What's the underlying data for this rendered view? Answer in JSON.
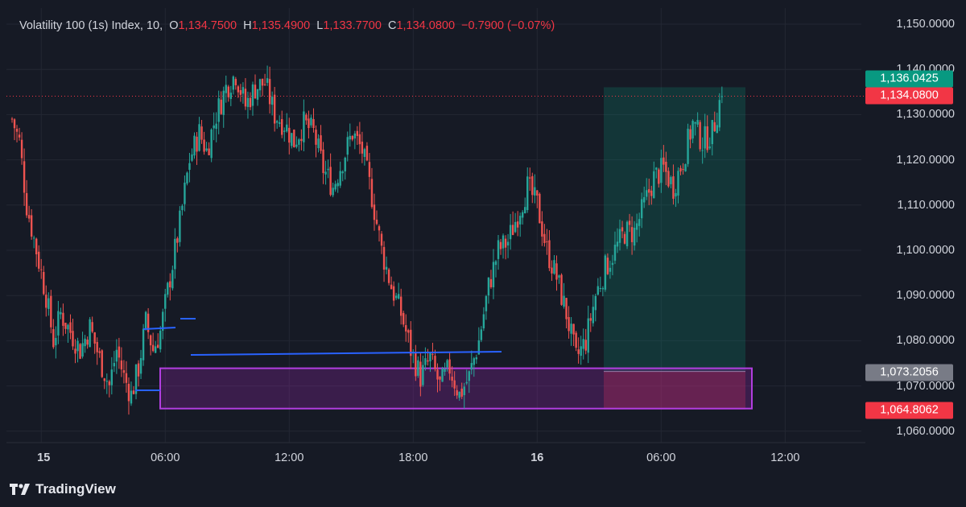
{
  "legend": {
    "symbol": "Volatility 100 (1s) Index, 10,",
    "o_key": "O",
    "o_val": "1,134.7500",
    "h_key": "H",
    "h_val": "1,135.4900",
    "l_key": "L",
    "l_val": "1,133.7700",
    "c_key": "C",
    "c_val": "1,134.0800",
    "change": "−0.7900 (−0.07%)"
  },
  "price_axis": [
    "1,150.0000",
    "1,140.0000",
    "1,130.0000",
    "1,120.0000",
    "1,110.0000",
    "1,100.0000",
    "1,090.0000",
    "1,080.0000",
    "1,070.0000",
    "1,060.0000"
  ],
  "time_axis": [
    {
      "label": "15",
      "bold": true
    },
    {
      "label": "06:00",
      "bold": false
    },
    {
      "label": "12:00",
      "bold": false
    },
    {
      "label": "18:00",
      "bold": false
    },
    {
      "label": "16",
      "bold": true
    },
    {
      "label": "06:00",
      "bold": false
    },
    {
      "label": "12:00",
      "bold": false
    }
  ],
  "badges": {
    "target": "1,136.0425",
    "last": "1,134.0800",
    "entry": "1,073.2056",
    "stop": "1,064.8062"
  },
  "brand": "TradingView",
  "colors": {
    "up": "#26a69a",
    "down": "#ef5350",
    "bg": "#161a25",
    "grid": "#232733",
    "trendline": "#2962ff",
    "zone": "#9c27b0",
    "target_badge": "#089981",
    "last_badge": "#f23645",
    "entry_badge": "#787b86"
  },
  "chart_data": {
    "type": "candlestick",
    "title": "Volatility 100 (1s) Index, 10",
    "ylim": [
      1056,
      1154
    ],
    "y_ticks": [
      1060,
      1070,
      1080,
      1090,
      1100,
      1110,
      1120,
      1130,
      1140,
      1150
    ],
    "x_ticks": [
      "15",
      "06:00",
      "12:00",
      "18:00",
      "16",
      "06:00",
      "12:00"
    ],
    "close_path": [
      [
        0,
        1129
      ],
      [
        3,
        1124
      ],
      [
        6,
        1110
      ],
      [
        10,
        1100
      ],
      [
        14,
        1090
      ],
      [
        17,
        1080
      ],
      [
        20,
        1086
      ],
      [
        24,
        1082
      ],
      [
        28,
        1078
      ],
      [
        32,
        1083
      ],
      [
        36,
        1076
      ],
      [
        40,
        1070
      ],
      [
        43,
        1078
      ],
      [
        46,
        1072
      ],
      [
        49,
        1068
      ],
      [
        52,
        1074
      ],
      [
        55,
        1084
      ],
      [
        58,
        1078
      ],
      [
        61,
        1082
      ],
      [
        65,
        1094
      ],
      [
        69,
        1106
      ],
      [
        73,
        1120
      ],
      [
        77,
        1126
      ],
      [
        80,
        1122
      ],
      [
        84,
        1130
      ],
      [
        88,
        1136
      ],
      [
        92,
        1139
      ],
      [
        96,
        1132
      ],
      [
        100,
        1136
      ],
      [
        104,
        1137
      ],
      [
        108,
        1130
      ],
      [
        112,
        1128
      ],
      [
        116,
        1124
      ],
      [
        120,
        1128
      ],
      [
        124,
        1126
      ],
      [
        128,
        1118
      ],
      [
        132,
        1114
      ],
      [
        136,
        1120
      ],
      [
        140,
        1126
      ],
      [
        144,
        1122
      ],
      [
        148,
        1112
      ],
      [
        152,
        1100
      ],
      [
        156,
        1092
      ],
      [
        160,
        1086
      ],
      [
        164,
        1078
      ],
      [
        168,
        1072
      ],
      [
        172,
        1076
      ],
      [
        176,
        1070
      ],
      [
        180,
        1074
      ],
      [
        184,
        1068
      ],
      [
        188,
        1072
      ],
      [
        192,
        1080
      ],
      [
        196,
        1092
      ],
      [
        200,
        1100
      ],
      [
        204,
        1102
      ],
      [
        208,
        1108
      ],
      [
        212,
        1114
      ],
      [
        216,
        1110
      ],
      [
        220,
        1100
      ],
      [
        224,
        1094
      ],
      [
        228,
        1086
      ],
      [
        232,
        1076
      ],
      [
        236,
        1080
      ],
      [
        240,
        1090
      ],
      [
        244,
        1096
      ],
      [
        248,
        1100
      ],
      [
        252,
        1104
      ],
      [
        256,
        1104
      ],
      [
        260,
        1110
      ],
      [
        264,
        1116
      ],
      [
        268,
        1118
      ],
      [
        272,
        1114
      ],
      [
        276,
        1120
      ],
      [
        280,
        1128
      ],
      [
        284,
        1124
      ],
      [
        288,
        1126
      ],
      [
        292,
        1135
      ]
    ],
    "last_price": 1134.08,
    "annotations": {
      "trendlines": [
        {
          "from": [
            39,
            1076
          ],
          "to": [
            157,
            1077.5
          ]
        },
        {
          "from": [
            41,
            1082.5
          ],
          "to": [
            59,
            1083
          ]
        },
        {
          "from": [
            57,
            1084.7
          ],
          "to": [
            59,
            1084.7
          ]
        }
      ],
      "demand_zone": {
        "low": 1065,
        "high": 1073.2,
        "from_bar": 47,
        "to_bar": 228
      },
      "long_position": {
        "entry": 1073.2056,
        "target": 1136.0425,
        "stop": 1064.8062
      }
    }
  }
}
